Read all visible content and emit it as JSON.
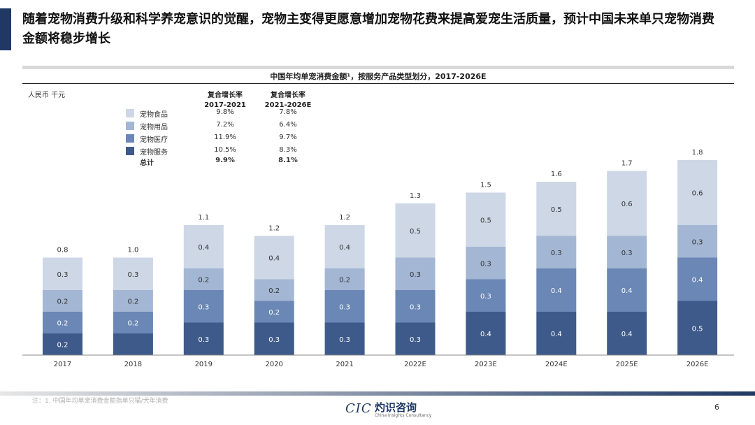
{
  "slide": {
    "headline": "随着宠物消费升级和科学养宠意识的觉醒，宠物主变得更愿意增加宠物花费来提高爱宠生活质量，预计中国未来单只宠物消费金额将稳步增长",
    "footnote": "注：1. 中国年均单宠消费金额指单只猫/犬年消费",
    "logo_mark": "CIC",
    "logo_cn": "灼识咨询",
    "logo_en": "China Insights Consultancy",
    "page_number": "6",
    "accent_color": "#1f3864"
  },
  "chart_data": {
    "type": "bar",
    "stacked": true,
    "title": "中国年均单宠消费金额¹，按服务产品类型划分，2017-2026E",
    "unit": "人民币 千元",
    "categories": [
      "2017",
      "2018",
      "2019",
      "2020",
      "2021",
      "2022E",
      "2023E",
      "2024E",
      "2025E",
      "2026E"
    ],
    "series": [
      {
        "name": "宠物服务",
        "color": "#3d5a8a",
        "values": [
          0.2,
          0.2,
          0.3,
          0.3,
          0.3,
          0.3,
          0.4,
          0.4,
          0.4,
          0.5
        ],
        "labels": [
          "0.2",
          "",
          "0.3",
          "0.3",
          "0.3",
          "0.3",
          "0.4",
          "0.4",
          "0.4",
          "0.5"
        ]
      },
      {
        "name": "宠物医疗",
        "color": "#6a87b5",
        "values": [
          0.2,
          0.2,
          0.3,
          0.2,
          0.3,
          0.3,
          0.3,
          0.4,
          0.4,
          0.4
        ],
        "labels": [
          "0.2",
          "0.2",
          "0.3",
          "0.2",
          "0.3",
          "0.3",
          "0.3",
          "0.4",
          "0.4",
          "0.4"
        ]
      },
      {
        "name": "宠物用品",
        "color": "#a3b6d3",
        "values": [
          0.2,
          0.2,
          0.2,
          0.2,
          0.2,
          0.3,
          0.3,
          0.3,
          0.3,
          0.3
        ],
        "labels": [
          "0.2",
          "0.2",
          "0.2",
          "0.2",
          "0.2",
          "0.3",
          "0.3",
          "0.3",
          "0.3",
          "0.3"
        ]
      },
      {
        "name": "宠物食品",
        "color": "#cdd7e6",
        "values": [
          0.3,
          0.3,
          0.4,
          0.4,
          0.4,
          0.5,
          0.5,
          0.5,
          0.6,
          0.6
        ],
        "labels": [
          "0.3",
          "0.3",
          "0.4",
          "0.4",
          "0.4",
          "0.5",
          "0.5",
          "0.5",
          "0.6",
          "0.6"
        ]
      }
    ],
    "totals": [
      "0.8",
      "1.0",
      "1.1",
      "1.2",
      "1.2",
      "1.3",
      "1.5",
      "1.6",
      "1.7",
      "1.8"
    ],
    "cagr": {
      "header1": [
        "复合增长率",
        "2017-2021"
      ],
      "header2": [
        "复合增长率",
        "2021-2026E"
      ],
      "rows": [
        {
          "name": "宠物食品",
          "c1": "9.8%",
          "c2": "7.8%"
        },
        {
          "name": "宠物用品",
          "c1": "7.2%",
          "c2": "6.4%"
        },
        {
          "name": "宠物医疗",
          "c1": "11.9%",
          "c2": "9.7%"
        },
        {
          "name": "宠物服务",
          "c1": "10.5%",
          "c2": "8.3%"
        }
      ],
      "total": {
        "name": "总计",
        "c1": "9.9%",
        "c2": "8.1%"
      }
    },
    "ylim": [
      0,
      1.8
    ],
    "grid": false,
    "legend_position": "top-left"
  }
}
